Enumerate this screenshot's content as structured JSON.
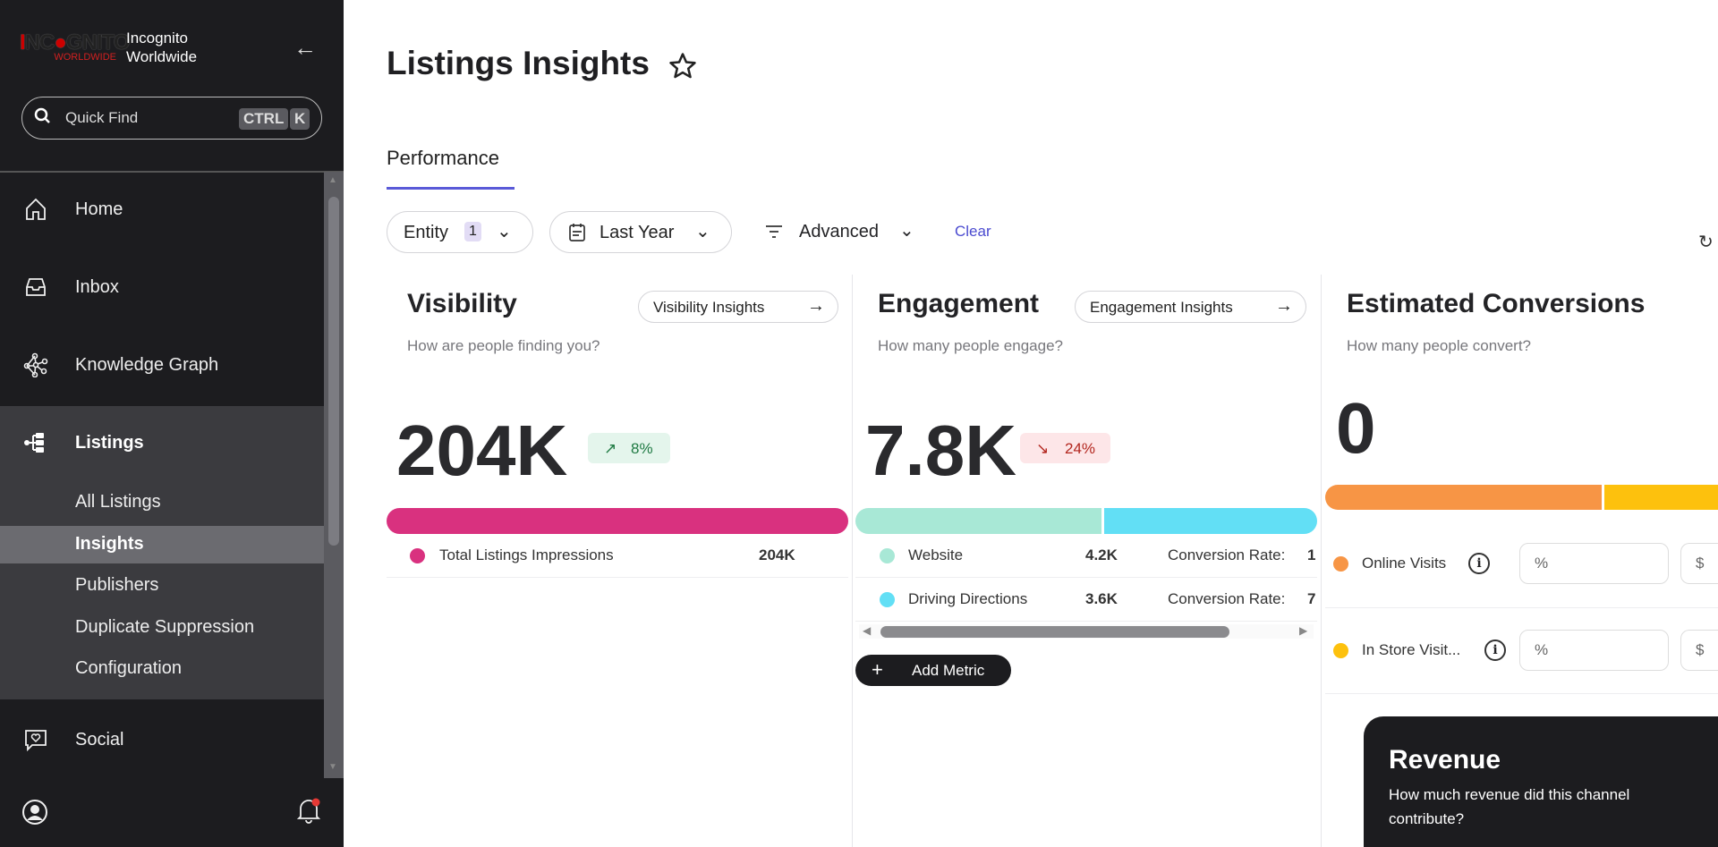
{
  "sidebar": {
    "logo_text": "INCOGNITO WORLDWIDE",
    "brand_line1": "Incognito",
    "brand_line2": "Worldwide",
    "quick_find": "Quick Find",
    "kbd1": "CTRL",
    "kbd2": "K",
    "nav": [
      {
        "label": "Home",
        "icon": "home-icon"
      },
      {
        "label": "Inbox",
        "icon": "inbox-icon"
      },
      {
        "label": "Knowledge Graph",
        "icon": "knowledge-graph-icon"
      },
      {
        "label": "Listings",
        "icon": "listings-icon"
      },
      {
        "label": "Social",
        "icon": "social-icon"
      }
    ],
    "listings_sub": [
      "All Listings",
      "Insights",
      "Publishers",
      "Duplicate Suppression",
      "Configuration"
    ],
    "active_sub": "Insights"
  },
  "header": {
    "title": "Listings Insights",
    "tab": "Performance"
  },
  "filters": {
    "entity": "Entity",
    "entity_count": "1",
    "date": "Last Year",
    "advanced": "Advanced",
    "clear": "Clear"
  },
  "visibility": {
    "title": "Visibility",
    "link": "Visibility Insights",
    "subtitle": "How are people finding you?",
    "value": "204K",
    "change": "8%",
    "change_dir": "up",
    "metrics": [
      {
        "label": "Total Listings Impressions",
        "value": "204K",
        "color": "#d9317f"
      }
    ]
  },
  "engagement": {
    "title": "Engagement",
    "link": "Engagement Insights",
    "subtitle": "How many people engage?",
    "value": "7.8K",
    "change": "24%",
    "change_dir": "down",
    "metrics": [
      {
        "label": "Website",
        "value": "4.2K",
        "rate_label": "Conversion Rate:",
        "rate_value": "1",
        "color": "#a8e8d6"
      },
      {
        "label": "Driving Directions",
        "value": "3.6K",
        "rate_label": "Conversion Rate:",
        "rate_value": "7",
        "color": "#62dff5"
      }
    ],
    "add_metric": "Add Metric"
  },
  "conversions": {
    "title": "Estimated Conversions",
    "subtitle": "How many people convert?",
    "value": "0",
    "metrics": [
      {
        "label": "Online Visits",
        "pct_placeholder": "%",
        "dollar_placeholder": "$",
        "color": "#f79545"
      },
      {
        "label": "In Store Visit...",
        "pct_placeholder": "%",
        "dollar_placeholder": "$",
        "color": "#fdc10d"
      }
    ]
  },
  "revenue": {
    "title": "Revenue",
    "subtitle": "How much revenue did this channel contribute?"
  },
  "colors": {
    "accent": "#5a5ad8",
    "visibility_bar": "#d9317f",
    "sidebar_bg": "#1c1c1f"
  }
}
